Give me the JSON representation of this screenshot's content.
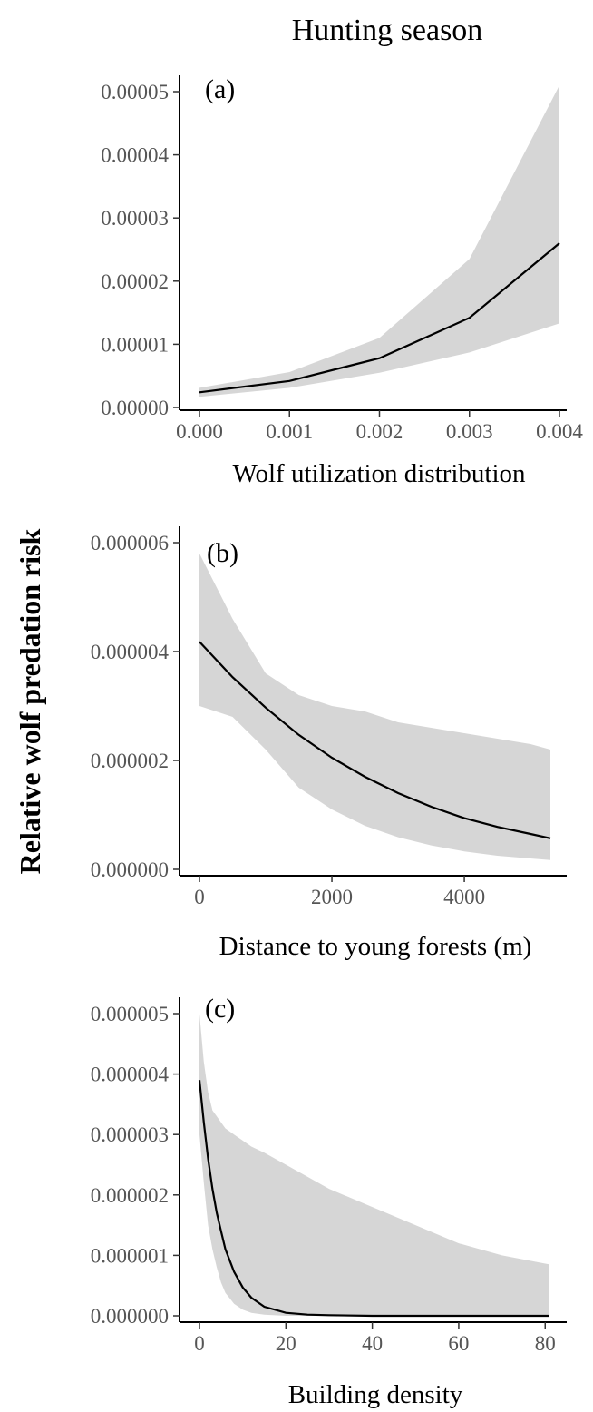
{
  "figure": {
    "title": "Hunting season",
    "ylabel": "Relative wolf predation risk"
  },
  "colors": {
    "band": "#d6d6d6",
    "line": "#000000"
  },
  "chart_data": [
    {
      "type": "line",
      "panel_label": "(a)",
      "xlabel": "Wolf utilization distribution",
      "xlim": [
        0,
        0.004
      ],
      "ylim": [
        0,
        5e-05
      ],
      "x_ticks": [
        "0.000",
        "0.001",
        "0.002",
        "0.003",
        "0.004"
      ],
      "x_tick_values": [
        0,
        0.001,
        0.002,
        0.003,
        0.004
      ],
      "y_ticks": [
        "0.00000",
        "0.00001",
        "0.00002",
        "0.00003",
        "0.00004",
        "0.00005"
      ],
      "y_tick_values": [
        0,
        1e-05,
        2e-05,
        3e-05,
        4e-05,
        5e-05
      ],
      "x": [
        0,
        0.001,
        0.002,
        0.003,
        0.004
      ],
      "y": [
        2.4e-06,
        4.2e-06,
        7.8e-06,
        1.42e-05,
        2.6e-05
      ],
      "lower": [
        1.7e-06,
        3.1e-06,
        5.5e-06,
        8.7e-06,
        1.33e-05
      ],
      "upper": [
        3.1e-06,
        5.6e-06,
        1.1e-05,
        2.35e-05,
        5.1e-05
      ]
    },
    {
      "type": "line",
      "panel_label": "(b)",
      "xlabel": "Distance to young forests (m)",
      "xlim": [
        0,
        5300
      ],
      "ylim": [
        0,
        6e-06
      ],
      "x_ticks": [
        "0",
        "2000",
        "4000"
      ],
      "x_tick_values": [
        0,
        2000,
        4000
      ],
      "y_ticks": [
        "0.000000",
        "0.000002",
        "0.000004",
        "0.000006"
      ],
      "y_tick_values": [
        0,
        2e-06,
        4e-06,
        6e-06
      ],
      "x": [
        0,
        500,
        1000,
        1500,
        2000,
        2500,
        3000,
        3500,
        4000,
        4500,
        5000,
        5300
      ],
      "y": [
        4.18e-06,
        3.53e-06,
        2.97e-06,
        2.47e-06,
        2.05e-06,
        1.7e-06,
        1.4e-06,
        1.15e-06,
        9.4e-07,
        7.8e-07,
        6.5e-07,
        5.7e-07
      ],
      "lower": [
        3e-06,
        2.8e-06,
        2.2e-06,
        1.5e-06,
        1.1e-06,
        8e-07,
        5.9e-07,
        4.4e-07,
        3.3e-07,
        2.5e-07,
        2e-07,
        1.7e-07
      ],
      "upper": [
        5.8e-06,
        4.6e-06,
        3.6e-06,
        3.2e-06,
        3e-06,
        2.9e-06,
        2.7e-06,
        2.6e-06,
        2.5e-06,
        2.4e-06,
        2.3e-06,
        2.2e-06
      ]
    },
    {
      "type": "line",
      "panel_label": "(c)",
      "xlabel": "Building density",
      "xlim": [
        0,
        81
      ],
      "ylim": [
        0,
        5e-06
      ],
      "x_ticks": [
        "0",
        "20",
        "40",
        "60",
        "80"
      ],
      "x_tick_values": [
        0,
        20,
        40,
        60,
        80
      ],
      "y_ticks": [
        "0.000000",
        "0.000001",
        "0.000002",
        "0.000003",
        "0.000004",
        "0.000005"
      ],
      "y_tick_values": [
        0,
        1e-06,
        2e-06,
        3e-06,
        4e-06,
        5e-06
      ],
      "x": [
        0,
        1,
        2,
        3,
        4,
        5,
        6,
        8,
        10,
        12,
        15,
        20,
        25,
        30,
        40,
        50,
        60,
        70,
        81
      ],
      "y": [
        3.9e-06,
        3.2e-06,
        2.6e-06,
        2.1e-06,
        1.7e-06,
        1.4e-06,
        1.1e-06,
        7.3e-07,
        4.7e-07,
        3e-07,
        1.5e-07,
        5e-08,
        2e-08,
        1e-08,
        0,
        0,
        0,
        0,
        0
      ],
      "lower": [
        3e-06,
        2.2e-06,
        1.5e-06,
        1.1e-06,
        8e-07,
        5.5e-07,
        3.8e-07,
        2e-07,
        1e-07,
        5e-08,
        2e-08,
        0,
        0,
        0,
        0,
        0,
        0,
        0,
        0
      ],
      "upper": [
        5e-06,
        4.2e-06,
        3.7e-06,
        3.4e-06,
        3.3e-06,
        3.2e-06,
        3.1e-06,
        3e-06,
        2.9e-06,
        2.8e-06,
        2.7e-06,
        2.5e-06,
        2.3e-06,
        2.1e-06,
        1.8e-06,
        1.5e-06,
        1.2e-06,
        1e-06,
        8.5e-07
      ]
    }
  ]
}
